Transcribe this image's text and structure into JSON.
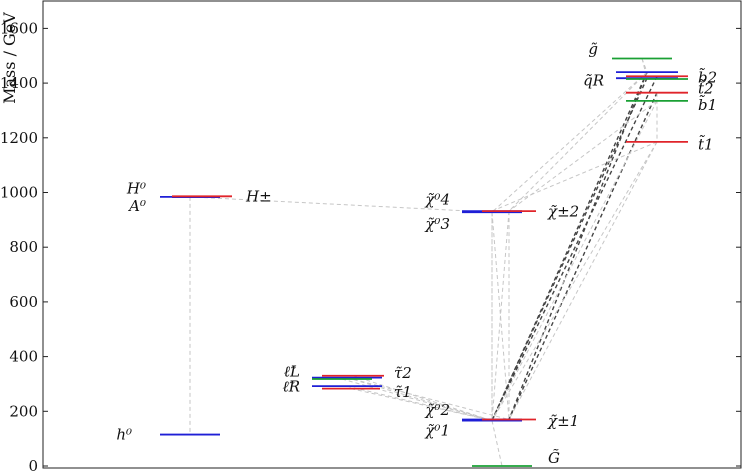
{
  "chart_data": {
    "type": "spectrum",
    "ylabel": "Mass / GeV",
    "ylim": [
      0,
      1700
    ],
    "yticks": [
      0,
      200,
      400,
      600,
      800,
      1000,
      1200,
      1400,
      1600
    ],
    "columns": [
      "higgs",
      "sleptons",
      "gauginos",
      "squarks"
    ],
    "levels": [
      {
        "id": "h0",
        "column": "higgs",
        "mass": 115,
        "color": "#1f1fd6"
      },
      {
        "id": "H0",
        "column": "higgs",
        "mass": 984,
        "color": "#1f1fd6"
      },
      {
        "id": "A0",
        "column": "higgs",
        "mass": 983,
        "color": "#1f1fd6"
      },
      {
        "id": "Hpm",
        "column": "higgs",
        "mass": 986,
        "color": "#e0242a"
      },
      {
        "id": "slL",
        "column": "sleptons",
        "mass": 323,
        "color": "#1f1fd6"
      },
      {
        "id": "slR",
        "column": "sleptons",
        "mass": 292,
        "color": "#1f1fd6"
      },
      {
        "id": "stau2",
        "column": "sleptons",
        "mass": 330,
        "color": "#e0242a"
      },
      {
        "id": "stau1",
        "column": "sleptons",
        "mass": 283,
        "color": "#e0242a"
      },
      {
        "id": "snu",
        "column": "sleptons",
        "mass": 318,
        "color": "#1aa034"
      },
      {
        "id": "N1",
        "column": "gauginos",
        "mass": 166,
        "color": "#1f1fd6"
      },
      {
        "id": "N2",
        "column": "gauginos",
        "mass": 170,
        "color": "#1f1fd6"
      },
      {
        "id": "C1",
        "column": "gauginos",
        "mass": 170,
        "color": "#e0242a"
      },
      {
        "id": "N3",
        "column": "gauginos",
        "mass": 928,
        "color": "#1f1fd6"
      },
      {
        "id": "N4",
        "column": "gauginos",
        "mass": 932,
        "color": "#1f1fd6"
      },
      {
        "id": "C2",
        "column": "gauginos",
        "mass": 932,
        "color": "#e0242a"
      },
      {
        "id": "gravitino",
        "column": "gauginos",
        "mass": 0,
        "color": "#1aa034"
      },
      {
        "id": "gluino",
        "column": "squarks",
        "mass": 1490,
        "color": "#1aa034"
      },
      {
        "id": "sqL",
        "column": "squarks",
        "mass": 1440,
        "color": "#1f1fd6"
      },
      {
        "id": "sqR",
        "column": "squarks",
        "mass": 1418,
        "color": "#1f1fd6"
      },
      {
        "id": "sb2",
        "column": "squarks",
        "mass": 1425,
        "color": "#e0242a"
      },
      {
        "id": "st2",
        "column": "squarks",
        "mass": 1365,
        "color": "#e0242a"
      },
      {
        "id": "sb1",
        "column": "squarks",
        "mass": 1335,
        "color": "#1aa034"
      },
      {
        "id": "sb2g",
        "column": "squarks",
        "mass": 1415,
        "color": "#1aa034"
      },
      {
        "id": "st1",
        "column": "squarks",
        "mass": 1185,
        "color": "#e0242a"
      }
    ],
    "labels": [
      {
        "text": "h⁰",
        "mass": 115
      },
      {
        "text": "H⁰",
        "mass": 1015
      },
      {
        "text": "A⁰",
        "mass": 950
      },
      {
        "text": "H±",
        "mass": 985
      },
      {
        "text": "ℓ̃L",
        "mass": 345
      },
      {
        "text": "ℓ̃R",
        "mass": 290
      },
      {
        "text": "τ̃2",
        "mass": 340
      },
      {
        "text": "τ̃1",
        "mass": 270
      },
      {
        "text": "χ̃⁰4",
        "mass": 975
      },
      {
        "text": "χ̃⁰3",
        "mass": 885
      },
      {
        "text": "χ̃±2",
        "mass": 930
      },
      {
        "text": "χ̃⁰2",
        "mass": 205
      },
      {
        "text": "χ̃⁰1",
        "mass": 130
      },
      {
        "text": "χ̃±1",
        "mass": 165
      },
      {
        "text": "G̃",
        "mass": 30
      },
      {
        "text": "g̃",
        "mass": 1525
      },
      {
        "text": "q̃R",
        "mass": 1410
      },
      {
        "text": "b̃2",
        "mass": 1420
      },
      {
        "text": "t̃2",
        "mass": 1380
      },
      {
        "text": "b̃1",
        "mass": 1320
      },
      {
        "text": "t̃1",
        "mass": 1175
      }
    ],
    "decays": [
      {
        "from": "H0",
        "to": "h0"
      },
      {
        "from": "slL",
        "to": "N1"
      },
      {
        "from": "slR",
        "to": "N1"
      },
      {
        "from": "stau2",
        "to": "N1"
      },
      {
        "from": "stau1",
        "to": "N1"
      },
      {
        "from": "slL",
        "to": "C1"
      },
      {
        "from": "snu",
        "to": "N1"
      },
      {
        "from": "N3",
        "to": "N1"
      },
      {
        "from": "N3",
        "to": "C1"
      },
      {
        "from": "N4",
        "to": "N1"
      },
      {
        "from": "C2",
        "to": "N1"
      },
      {
        "from": "C2",
        "to": "C1"
      },
      {
        "from": "N4",
        "to": "N2"
      },
      {
        "from": "N3",
        "to": "N2"
      },
      {
        "from": "N1",
        "to": "gravitino"
      },
      {
        "from": "H0",
        "to": "N3"
      },
      {
        "from": "sqL",
        "to": "N1",
        "strong": true
      },
      {
        "from": "sqL",
        "to": "C1",
        "strong": true
      },
      {
        "from": "sqR",
        "to": "N1",
        "strong": true
      },
      {
        "from": "sb2",
        "to": "N1",
        "strong": true
      },
      {
        "from": "st2",
        "to": "C1",
        "strong": true
      },
      {
        "from": "sb1",
        "to": "N1"
      },
      {
        "from": "st1",
        "to": "N1"
      },
      {
        "from": "st1",
        "to": "C1"
      },
      {
        "from": "gluino",
        "to": "sqL"
      },
      {
        "from": "gluino",
        "to": "sqR"
      },
      {
        "from": "sqL",
        "to": "N3"
      },
      {
        "from": "sqL",
        "to": "C2"
      },
      {
        "from": "sb1",
        "to": "C2"
      },
      {
        "from": "st1",
        "to": "N4"
      },
      {
        "from": "st2",
        "to": "st1"
      }
    ]
  }
}
